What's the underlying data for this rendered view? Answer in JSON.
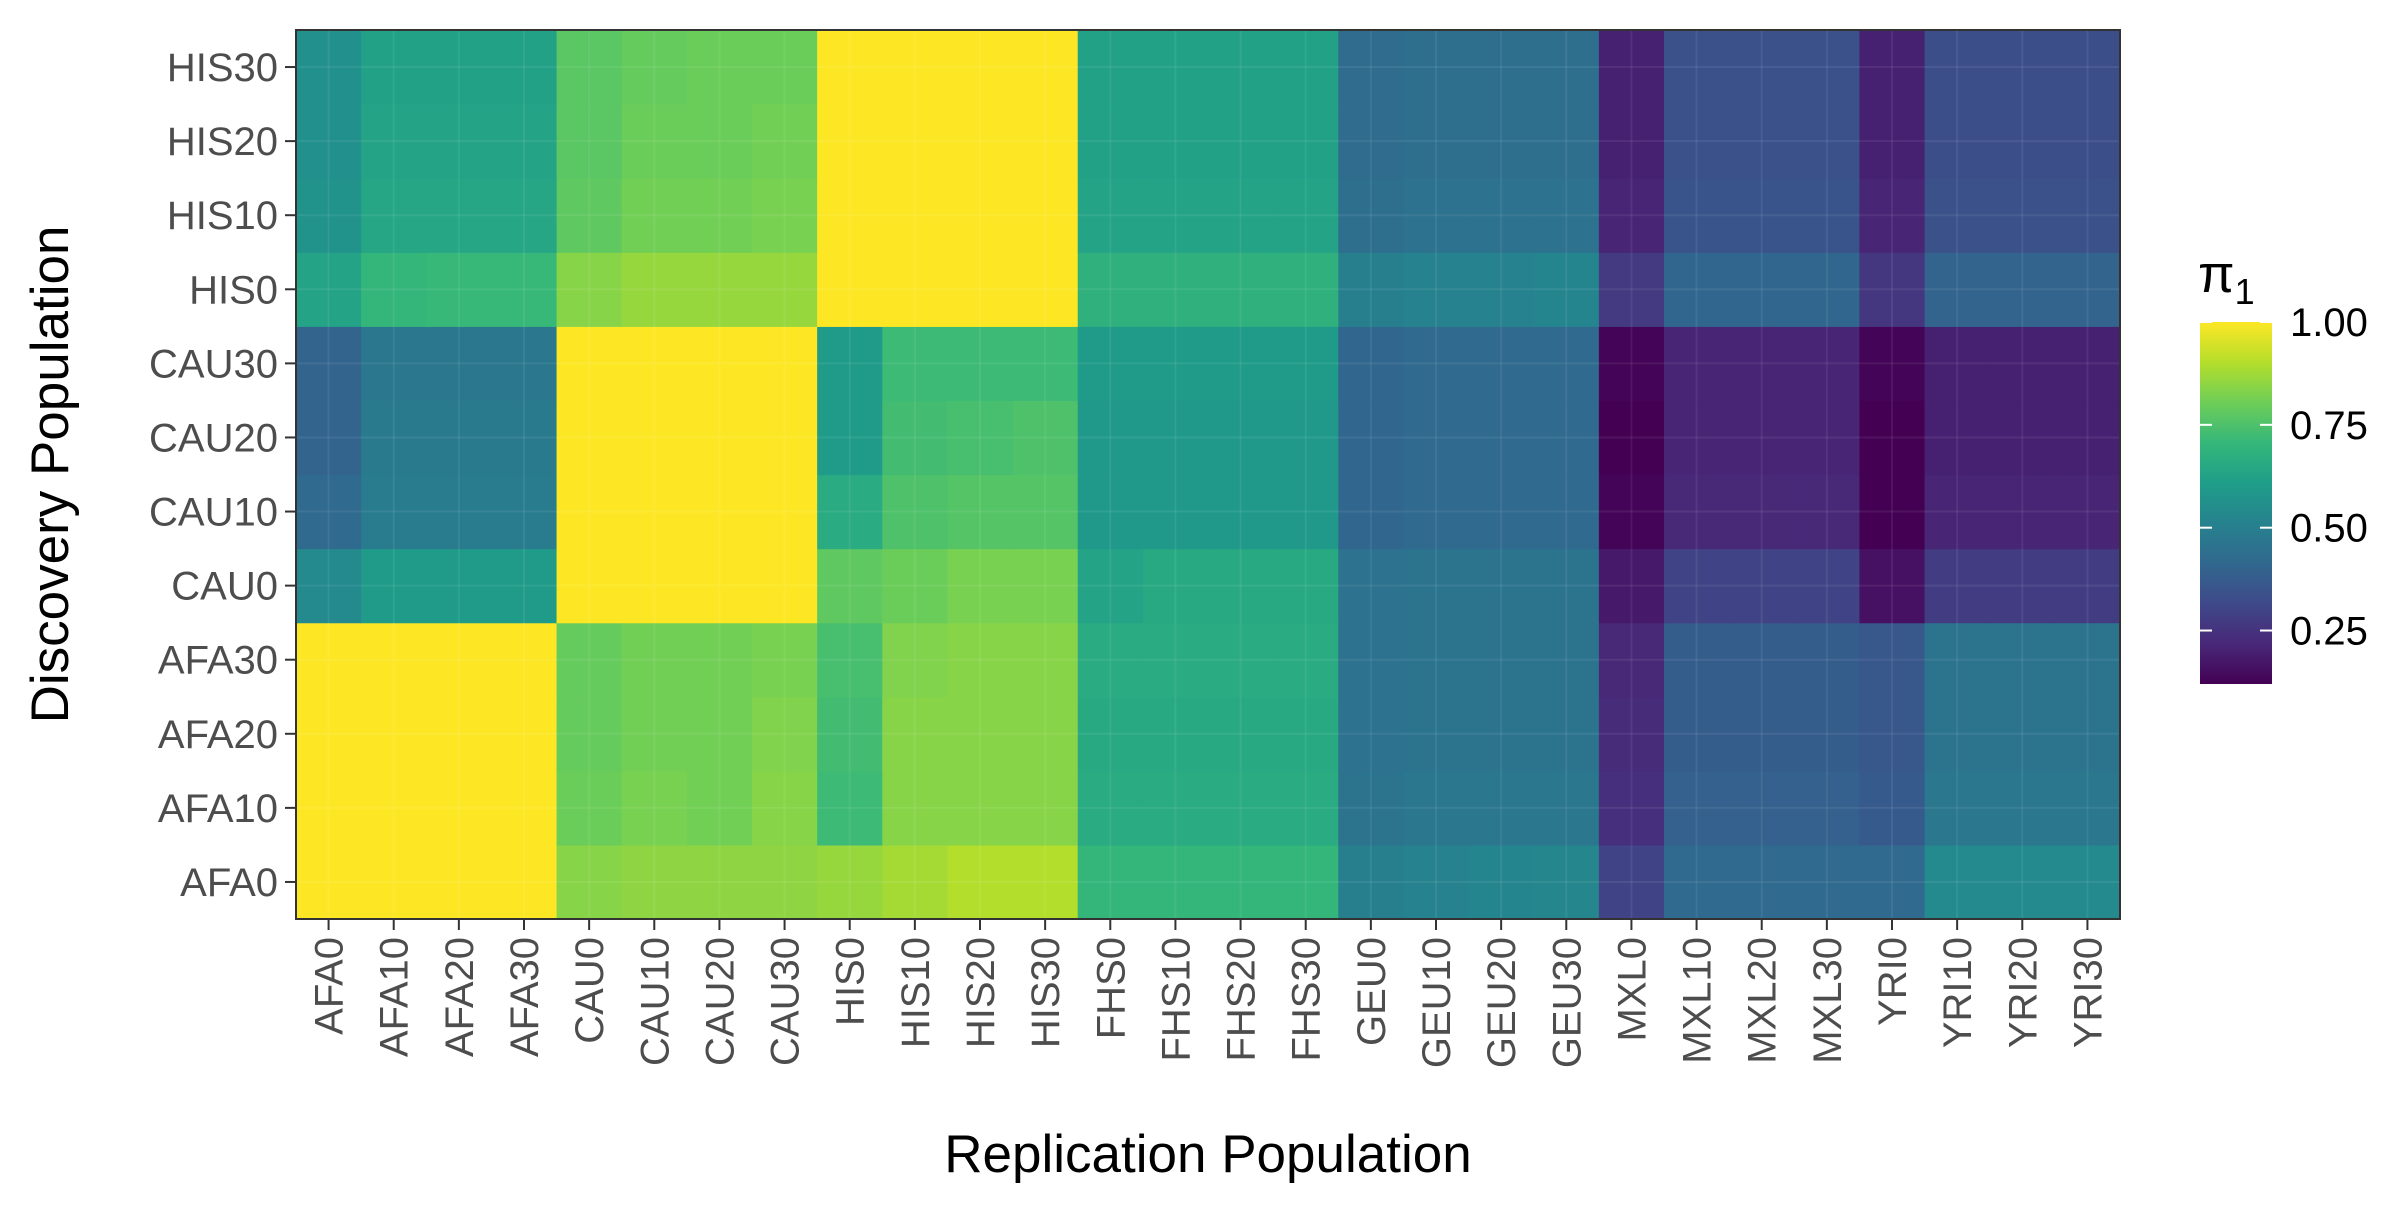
{
  "chart_data": {
    "type": "heatmap",
    "xlabel": "Replication Population",
    "ylabel": "Discovery Population",
    "x_categories": [
      "AFA0",
      "AFA10",
      "AFA20",
      "AFA30",
      "CAU0",
      "CAU10",
      "CAU20",
      "CAU30",
      "HIS0",
      "HIS10",
      "HIS20",
      "HIS30",
      "FHS0",
      "FHS10",
      "FHS20",
      "FHS30",
      "GEU0",
      "GEU10",
      "GEU20",
      "GEU30",
      "MXL0",
      "MXL10",
      "MXL20",
      "MXL30",
      "YRI0",
      "YRI10",
      "YRI20",
      "YRI30"
    ],
    "y_categories": [
      "AFA0",
      "AFA10",
      "AFA20",
      "AFA30",
      "CAU0",
      "CAU10",
      "CAU20",
      "CAU30",
      "HIS0",
      "HIS10",
      "HIS20",
      "HIS30"
    ],
    "legend": {
      "title_base": "π",
      "title_sub": "1",
      "position": "right",
      "range": [
        0.12,
        1.0
      ],
      "ticks": [
        0.25,
        0.5,
        0.75,
        1.0
      ],
      "tick_labels": [
        "0.25",
        "0.50",
        "0.75",
        "1.00"
      ],
      "colormap": "viridis"
    },
    "grid": true,
    "values": [
      [
        1.0,
        1.0,
        1.0,
        1.0,
        0.84,
        0.85,
        0.85,
        0.85,
        0.86,
        0.88,
        0.9,
        0.9,
        0.7,
        0.7,
        0.7,
        0.7,
        0.5,
        0.51,
        0.52,
        0.53,
        0.3,
        0.42,
        0.42,
        0.42,
        0.42,
        0.54,
        0.54,
        0.54
      ],
      [
        1.0,
        1.0,
        1.0,
        1.0,
        0.8,
        0.82,
        0.81,
        0.84,
        0.72,
        0.84,
        0.84,
        0.84,
        0.66,
        0.66,
        0.66,
        0.66,
        0.46,
        0.47,
        0.47,
        0.47,
        0.24,
        0.39,
        0.39,
        0.39,
        0.37,
        0.47,
        0.47,
        0.47
      ],
      [
        1.0,
        1.0,
        1.0,
        1.0,
        0.79,
        0.81,
        0.81,
        0.83,
        0.73,
        0.84,
        0.84,
        0.84,
        0.65,
        0.65,
        0.65,
        0.65,
        0.45,
        0.46,
        0.46,
        0.46,
        0.23,
        0.38,
        0.38,
        0.38,
        0.36,
        0.46,
        0.46,
        0.46
      ],
      [
        1.0,
        1.0,
        1.0,
        1.0,
        0.79,
        0.81,
        0.81,
        0.82,
        0.74,
        0.83,
        0.84,
        0.84,
        0.66,
        0.66,
        0.66,
        0.66,
        0.45,
        0.46,
        0.46,
        0.46,
        0.22,
        0.38,
        0.38,
        0.38,
        0.36,
        0.46,
        0.46,
        0.46
      ],
      [
        0.54,
        0.6,
        0.6,
        0.6,
        1.0,
        1.0,
        1.0,
        1.0,
        0.78,
        0.8,
        0.82,
        0.82,
        0.63,
        0.65,
        0.65,
        0.65,
        0.45,
        0.46,
        0.46,
        0.46,
        0.18,
        0.3,
        0.3,
        0.3,
        0.16,
        0.28,
        0.28,
        0.28
      ],
      [
        0.42,
        0.49,
        0.49,
        0.49,
        1.0,
        1.0,
        1.0,
        1.0,
        0.66,
        0.75,
        0.76,
        0.76,
        0.59,
        0.59,
        0.59,
        0.59,
        0.41,
        0.42,
        0.42,
        0.42,
        0.13,
        0.22,
        0.22,
        0.22,
        0.11,
        0.21,
        0.21,
        0.21
      ],
      [
        0.4,
        0.48,
        0.48,
        0.48,
        1.0,
        1.0,
        1.0,
        1.0,
        0.6,
        0.73,
        0.74,
        0.75,
        0.59,
        0.59,
        0.59,
        0.59,
        0.41,
        0.42,
        0.42,
        0.42,
        0.12,
        0.21,
        0.21,
        0.21,
        0.12,
        0.2,
        0.2,
        0.2
      ],
      [
        0.4,
        0.47,
        0.47,
        0.47,
        1.0,
        1.0,
        1.0,
        1.0,
        0.6,
        0.72,
        0.72,
        0.72,
        0.6,
        0.6,
        0.6,
        0.6,
        0.41,
        0.42,
        0.42,
        0.42,
        0.13,
        0.21,
        0.21,
        0.21,
        0.13,
        0.2,
        0.2,
        0.2
      ],
      [
        0.63,
        0.7,
        0.71,
        0.71,
        0.84,
        0.86,
        0.86,
        0.86,
        1.0,
        1.0,
        1.0,
        1.0,
        0.68,
        0.68,
        0.68,
        0.68,
        0.5,
        0.51,
        0.51,
        0.52,
        0.27,
        0.41,
        0.41,
        0.41,
        0.26,
        0.4,
        0.4,
        0.4
      ],
      [
        0.57,
        0.64,
        0.64,
        0.64,
        0.78,
        0.81,
        0.81,
        0.82,
        1.0,
        1.0,
        1.0,
        1.0,
        0.63,
        0.63,
        0.63,
        0.63,
        0.44,
        0.45,
        0.45,
        0.45,
        0.21,
        0.35,
        0.35,
        0.35,
        0.21,
        0.34,
        0.34,
        0.34
      ],
      [
        0.56,
        0.63,
        0.63,
        0.63,
        0.77,
        0.8,
        0.8,
        0.81,
        1.0,
        1.0,
        1.0,
        1.0,
        0.62,
        0.62,
        0.62,
        0.62,
        0.43,
        0.44,
        0.44,
        0.44,
        0.2,
        0.34,
        0.34,
        0.34,
        0.2,
        0.33,
        0.33,
        0.33
      ],
      [
        0.56,
        0.62,
        0.62,
        0.62,
        0.77,
        0.79,
        0.8,
        0.8,
        1.0,
        1.0,
        1.0,
        1.0,
        0.62,
        0.62,
        0.62,
        0.62,
        0.43,
        0.44,
        0.44,
        0.44,
        0.2,
        0.34,
        0.34,
        0.34,
        0.2,
        0.33,
        0.33,
        0.33
      ]
    ]
  }
}
